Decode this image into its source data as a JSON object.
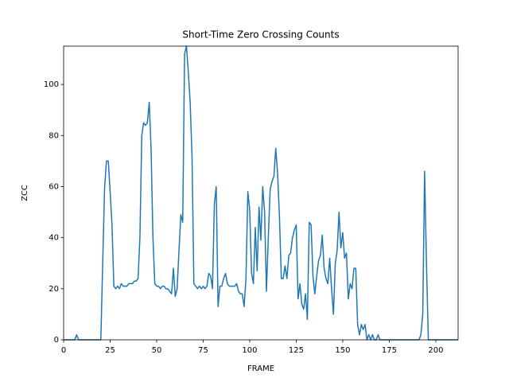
{
  "chart_data": {
    "type": "line",
    "title": "Short-Time Zero Crossing Counts",
    "xlabel": "FRAME",
    "ylabel": "ZCC",
    "color": "#1f77b4",
    "x": [
      0,
      1,
      2,
      3,
      4,
      5,
      6,
      7,
      8,
      9,
      10,
      11,
      12,
      13,
      14,
      15,
      16,
      17,
      18,
      19,
      20,
      21,
      22,
      23,
      24,
      25,
      26,
      27,
      28,
      29,
      30,
      31,
      32,
      33,
      34,
      35,
      36,
      37,
      38,
      39,
      40,
      41,
      42,
      43,
      44,
      45,
      46,
      47,
      48,
      49,
      50,
      51,
      52,
      53,
      54,
      55,
      56,
      57,
      58,
      59,
      60,
      61,
      62,
      63,
      64,
      65,
      66,
      67,
      68,
      69,
      70,
      71,
      72,
      73,
      74,
      75,
      76,
      77,
      78,
      79,
      80,
      81,
      82,
      83,
      84,
      85,
      86,
      87,
      88,
      89,
      90,
      91,
      92,
      93,
      94,
      95,
      96,
      97,
      98,
      99,
      100,
      101,
      102,
      103,
      104,
      105,
      106,
      107,
      108,
      109,
      110,
      111,
      112,
      113,
      114,
      115,
      116,
      117,
      118,
      119,
      120,
      121,
      122,
      123,
      124,
      125,
      126,
      127,
      128,
      129,
      130,
      131,
      132,
      133,
      134,
      135,
      136,
      137,
      138,
      139,
      140,
      141,
      142,
      143,
      144,
      145,
      146,
      147,
      148,
      149,
      150,
      151,
      152,
      153,
      154,
      155,
      156,
      157,
      158,
      159,
      160,
      161,
      162,
      163,
      164,
      165,
      166,
      167,
      168,
      169,
      170,
      171,
      172,
      173,
      174,
      175,
      176,
      177,
      178,
      179,
      180,
      181,
      182,
      183,
      184,
      185,
      186,
      187,
      188,
      189,
      190,
      191,
      192,
      193,
      194,
      195,
      196,
      197,
      198,
      199,
      200,
      201,
      202,
      203,
      204,
      205,
      206,
      207,
      208,
      209,
      210,
      211,
      212
    ],
    "values": [
      0,
      0,
      0,
      0,
      0,
      0,
      0,
      2,
      0,
      0,
      0,
      0,
      0,
      0,
      0,
      0,
      0,
      0,
      0,
      0,
      0,
      30,
      59,
      70,
      70,
      58,
      45,
      21,
      20,
      21,
      20,
      22,
      21,
      21,
      21,
      22,
      22,
      22,
      23,
      23,
      24,
      40,
      80,
      85,
      84,
      85,
      93,
      75,
      40,
      22,
      21,
      21,
      20,
      21,
      21,
      20,
      20,
      19,
      18,
      28,
      17,
      20,
      35,
      49,
      46,
      112,
      115,
      105,
      93,
      72,
      22,
      21,
      20,
      21,
      20,
      21,
      20,
      21,
      26,
      25,
      20,
      53,
      60,
      13,
      21,
      21,
      24,
      26,
      22,
      21,
      21,
      21,
      21,
      22,
      19,
      18,
      18,
      13,
      24,
      58,
      51,
      26,
      22,
      44,
      27,
      52,
      39,
      60,
      50,
      19,
      40,
      59,
      62,
      64,
      75,
      65,
      48,
      24,
      24,
      29,
      24,
      33,
      34,
      40,
      43,
      45,
      16,
      22,
      14,
      12,
      18,
      8,
      46,
      45,
      25,
      18,
      25,
      31,
      33,
      41,
      28,
      24,
      22,
      32,
      20,
      10,
      30,
      35,
      50,
      36,
      42,
      32,
      34,
      16,
      22,
      20,
      28,
      28,
      6,
      2,
      6,
      4,
      6,
      0,
      2,
      0,
      2,
      0,
      0,
      2,
      0,
      0,
      0,
      0,
      0,
      0,
      0,
      0,
      0,
      0,
      0,
      0,
      0,
      0,
      0,
      0,
      0,
      0,
      0,
      0,
      0,
      0,
      2,
      10,
      66,
      30,
      0,
      0,
      0,
      0,
      0,
      0,
      0,
      0,
      0,
      0,
      0,
      0,
      0,
      0,
      0,
      0,
      0
    ],
    "xlim": [
      0,
      212
    ],
    "ylim": [
      0,
      115
    ],
    "xticks": [
      0,
      25,
      50,
      75,
      100,
      125,
      150,
      175,
      200
    ],
    "yticks": [
      0,
      20,
      40,
      60,
      80,
      100
    ]
  }
}
